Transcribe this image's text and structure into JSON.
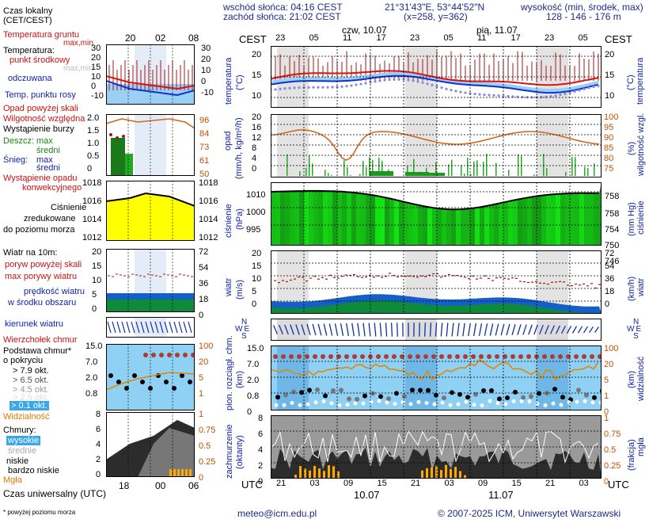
{
  "header": {
    "sunrise": "wschód słońca: 04:16 CEST",
    "sunset": "zachód słońca: 21:02 CEST",
    "coords": "21°31'43\"E, 53°44'52\"N",
    "grid": "(x=258, y=362)",
    "height_title": "wysokość (min, środek, max)",
    "height_values": "128 - 146 - 176 m",
    "day1": "czw, 10.07",
    "day2": "pią, 11.07",
    "tz": "CEST"
  },
  "legend_top": {
    "time_label": "Czas lokalny",
    "time_sub": "(CET/CEST)",
    "hours": [
      "20",
      "02",
      "08"
    ]
  },
  "legend": {
    "soil_temp": "Temperatura gruntu",
    "maxmin": "max,min",
    "temperature": "Temperatura:",
    "mid_point": "punkt środkowy",
    "max_min2": "max,min",
    "felt": "odczuwana",
    "dew": "Temp. punktu rosy",
    "precip_over": "Opad powyżej skali",
    "humidity": "Wilgotność względna",
    "storm": "Wystąpienie burzy",
    "rain": "Deszcz:",
    "rain_max": "max",
    "rain_mid": "średni",
    "snow": "Śnieg:",
    "snow_max": "max",
    "snow_mid": "średni",
    "conv": "Wystąpienie opadu",
    "conv2": "konwekcyjnego",
    "pressure1": "Ciśnienie",
    "pressure2": "zredukowane",
    "pressure3": "do poziomu morza",
    "wind": "Wiatr na 10m:",
    "gust_over": "poryw powyżej skali",
    "gust_max": "max porywy wiatru",
    "wind_avg1": "prędkość wiatru",
    "wind_avg2": "w środku obszaru",
    "wind_dir": "kierunek wiatru",
    "cloud_top": "Wierzchołek chmur",
    "cloud_base": "Podstawa chmur*",
    "coverage": "o pokryciu",
    "okt": [
      "> 7.9 okt.",
      "> 6.5 okt.",
      "> 4.5 okt.",
      "> 2.5 okt.",
      "> 0.1 okt."
    ],
    "visibility": "Widzialność",
    "clouds": "Chmury:",
    "high": "wysokie",
    "mid": "średnie",
    "low": "niskie",
    "very_low": "bardzo niskie",
    "fog": "Mgła",
    "utc_label": "Czas uniwersalny (UTC)",
    "utc_hours": [
      "18",
      "00",
      "06"
    ],
    "footnote": "* powyżej poziomu morza"
  },
  "axes": {
    "temp_left": [
      "30",
      "20",
      "15",
      "10",
      "0",
      "-10"
    ],
    "temp_right": [
      "30",
      "20",
      "10",
      "0",
      "-10"
    ],
    "precip_left": [
      "2.0",
      "1.5",
      "1.0",
      "0.5",
      "0"
    ],
    "precip_right": [
      "96",
      "84",
      "73",
      "61",
      "50"
    ],
    "press_left": [
      "1018",
      "1016",
      "1014",
      "1012"
    ],
    "press_right": [
      "1018",
      "1016",
      "1014",
      "1012"
    ],
    "wind_left": [
      "20",
      "15",
      "10",
      "5",
      "0"
    ],
    "wind_right": [
      "72",
      "54",
      "36",
      "18",
      "0"
    ],
    "cloud_left": [
      "15.0",
      "7.0",
      "2.0",
      "0.8"
    ],
    "cloud_right": [
      "100",
      "20",
      "5",
      "1"
    ],
    "cl_left": [
      "8",
      "6",
      "4",
      "2",
      "0"
    ],
    "cl_right": [
      "1",
      "0.75",
      "0.5",
      "0.25",
      "0"
    ],
    "main_temp_left": [
      "20",
      "15",
      "10"
    ],
    "main_temp_right": [
      "20",
      "15",
      "10"
    ],
    "main_precip_left": [
      "20",
      "16",
      "12",
      "8",
      "4",
      "0"
    ],
    "main_precip_right": [
      "100",
      "95",
      "90",
      "85",
      "80",
      "75"
    ],
    "main_press_left": [
      "1010",
      "1000",
      "995"
    ],
    "main_press_right": [
      "758",
      "754",
      "750",
      "746"
    ],
    "main_wind_left": [
      "20",
      "15",
      "10",
      "5",
      "0"
    ],
    "main_wind_right": [
      "72",
      "54",
      "36",
      "18",
      "0"
    ],
    "main_cloud_left": [
      "15.0",
      "7.0",
      "2.0",
      "0.8",
      "0"
    ],
    "main_cloud_right": [
      "100",
      "20",
      "5",
      "1",
      "0"
    ],
    "main_cl_left": [
      "8",
      "6",
      "4",
      "2",
      "0"
    ],
    "main_cl_right": [
      "1",
      "0.75",
      "0.5",
      "0.25",
      "0"
    ],
    "local_hours": [
      "23",
      "05",
      "11",
      "17",
      "23",
      "05",
      "11",
      "17",
      "23",
      "05"
    ],
    "utc_hours": [
      "21",
      "03",
      "09",
      "15",
      "21",
      "03",
      "09",
      "15",
      "21",
      "03"
    ],
    "utc_day1": "10.07",
    "utc_day2": "11.07",
    "utc": "UTC"
  },
  "ylabels": {
    "temp": "temperatura",
    "temp_unit": "(°C)",
    "precip": "opad",
    "precip_unit": "(mm/h, kg/m²/h)",
    "humidity": "wilgotność wzgl.",
    "humidity_unit": "(%)",
    "press": "ciśnienie",
    "press_unit": "(hPa)",
    "press_unit2": "(mm Hg)",
    "wind": "wiatr",
    "wind_unit": "(m/s)",
    "wind_unit2": "(km/h)",
    "cloud": "pion. rozciągł. chm.",
    "cloud_unit": "(km)",
    "vis": "widzialność",
    "vis_unit": "(km)",
    "cover": "zachmurzenie",
    "cover_unit": "(oktanty)",
    "fog": "mgła",
    "fog_unit": "(frakcja)"
  },
  "wind_compass": {
    "n": "N",
    "w": "W",
    "e": "E",
    "s": "S"
  },
  "footer": {
    "email": "meteo@icm.edu.pl",
    "copyright": "© 2007-2025 ICM, Uniwersytet Warszawski"
  },
  "colors": {
    "temp": "#e01010",
    "felt": "#1030d0",
    "dew": "#8888dd",
    "humidity": "#d2691e",
    "rain": "#22aa22",
    "pressure": "#33cc33",
    "wind": "#1050c0",
    "night_band": "#dcdcdc"
  }
}
